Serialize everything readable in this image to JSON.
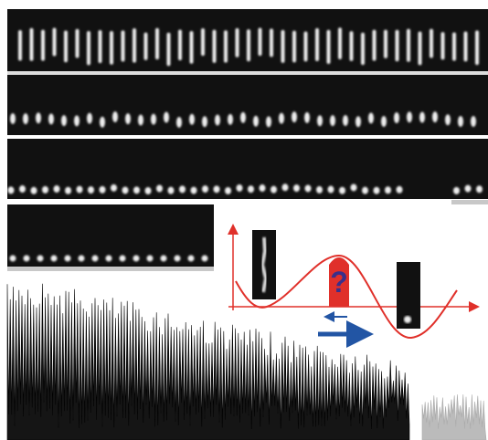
{
  "diagram": {
    "question_mark": "?"
  }
}
